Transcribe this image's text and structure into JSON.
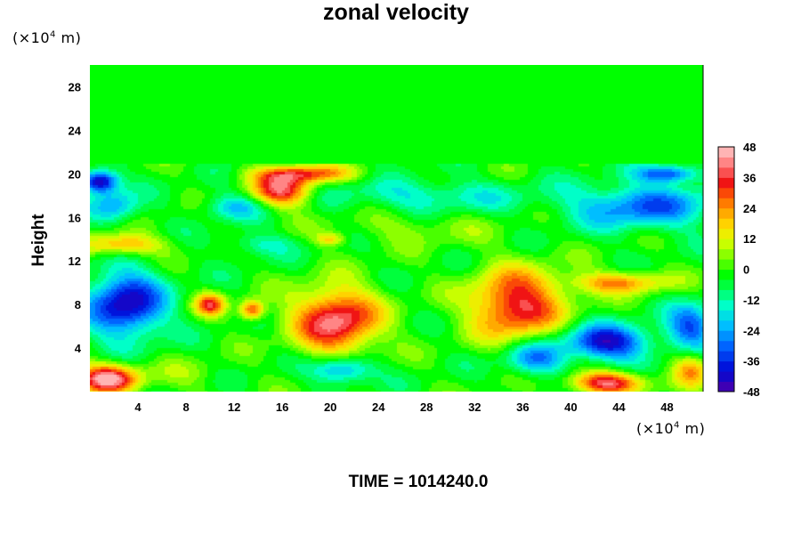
{
  "chart_data": {
    "type": "heatmap",
    "title": "zonal velocity",
    "ylabel": "Height",
    "xlabel": "",
    "x_unit": {
      "prefix": "(×10",
      "exp": "4",
      "suffix": " m)"
    },
    "y_unit": {
      "prefix": "(×10",
      "exp": "4",
      "suffix": " m)"
    },
    "xlim": [
      0,
      51
    ],
    "ylim": [
      0,
      30
    ],
    "xticks": [
      4,
      8,
      12,
      16,
      20,
      24,
      28,
      32,
      36,
      40,
      44,
      48
    ],
    "yticks": [
      4,
      8,
      12,
      16,
      20,
      24,
      28
    ],
    "colorbar": {
      "min": -48,
      "max": 48,
      "step": 4,
      "ticks": [
        48,
        36,
        24,
        12,
        0,
        -12,
        -24,
        -36,
        -48
      ]
    },
    "features": [
      {
        "x": 20.5,
        "y": 6.5,
        "value": 44,
        "sx": 3.5,
        "sy": 3
      },
      {
        "x": 35.5,
        "y": 8,
        "value": 40,
        "sx": 3.8,
        "sy": 3.2
      },
      {
        "x": 3,
        "y": 8,
        "value": -42,
        "sx": 3.2,
        "sy": 3
      },
      {
        "x": 1.5,
        "y": 1.2,
        "value": 48,
        "sx": 2.5,
        "sy": 1.3
      },
      {
        "x": 43,
        "y": 0.8,
        "value": 42,
        "sx": 3,
        "sy": 1.0
      },
      {
        "x": 43,
        "y": 4.5,
        "value": -40,
        "sx": 3.5,
        "sy": 1.6
      },
      {
        "x": 16,
        "y": 18.5,
        "value": 40,
        "sx": 2.5,
        "sy": 1.5
      },
      {
        "x": 0.8,
        "y": 19.3,
        "value": -46,
        "sx": 1.5,
        "sy": 1
      },
      {
        "x": 2.5,
        "y": 13.5,
        "value": 26,
        "sx": 3.5,
        "sy": 1.0
      },
      {
        "x": 44,
        "y": 10,
        "value": 26,
        "sx": 4,
        "sy": 1.0
      },
      {
        "x": 28,
        "y": 18,
        "value": -14,
        "sx": 8,
        "sy": 1.5
      },
      {
        "x": 46,
        "y": 17,
        "value": -28,
        "sx": 6,
        "sy": 2
      },
      {
        "x": 48,
        "y": 20,
        "value": -32,
        "sx": 2.5,
        "sy": 0.8
      },
      {
        "x": 18,
        "y": 20,
        "value": 30,
        "sx": 4,
        "sy": 0.8
      },
      {
        "x": 12,
        "y": 17,
        "value": -18,
        "sx": 2.5,
        "sy": 1.2
      },
      {
        "x": 21,
        "y": 2,
        "value": -28,
        "sx": 2.5,
        "sy": 1.2
      },
      {
        "x": 37,
        "y": 3,
        "value": -26,
        "sx": 2.5,
        "sy": 1.5
      },
      {
        "x": 10,
        "y": 8,
        "value": 34,
        "sx": 1.2,
        "sy": 1
      },
      {
        "x": 13.5,
        "y": 7.5,
        "value": 34,
        "sx": 1,
        "sy": 0.9
      },
      {
        "x": 50,
        "y": 6,
        "value": -30,
        "sx": 2,
        "sy": 2
      },
      {
        "x": 50,
        "y": 2,
        "value": 24,
        "sx": 1.5,
        "sy": 1.5
      },
      {
        "x": 8,
        "y": 1.5,
        "value": 6,
        "sx": 3,
        "sy": 1.5
      },
      {
        "x": 14,
        "y": 13.5,
        "value": -12,
        "sx": 3,
        "sy": 1
      },
      {
        "x": 27,
        "y": 15,
        "value": 8,
        "sx": 6,
        "sy": 1.5
      },
      {
        "x": 20,
        "y": 14,
        "value": 18,
        "sx": 1.2,
        "sy": 0.6
      },
      {
        "x": 2,
        "y": 17,
        "value": -22,
        "sx": 2,
        "sy": 1.5
      }
    ]
  },
  "footer": {
    "time_label": "TIME = 1014240.0"
  }
}
